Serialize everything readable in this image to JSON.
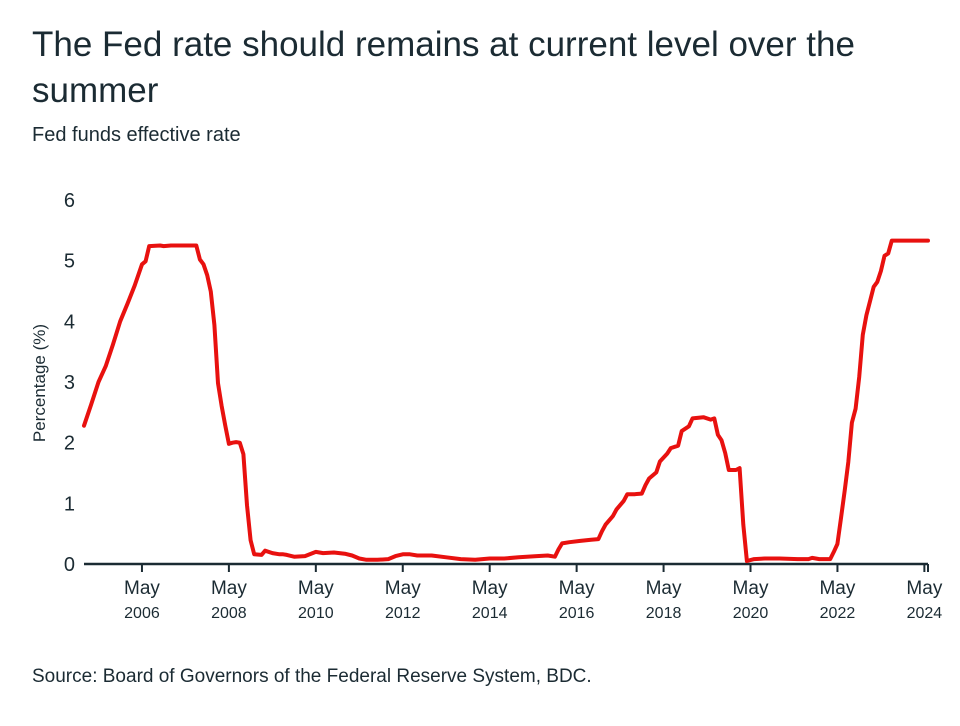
{
  "header": {
    "title": "The Fed rate should remains at current level over the summer",
    "subtitle": "Fed funds effective rate"
  },
  "footer": {
    "source": "Source: Board of Governors of the Federal Reserve System, BDC."
  },
  "colors": {
    "line": "#e8110f",
    "axis": "#1b2b33",
    "text": "#1b2b33"
  },
  "chart_data": {
    "type": "line",
    "title": "The Fed rate should remains at current level over the summer",
    "subtitle": "Fed funds effective rate",
    "ylabel": "Percentage (%)",
    "xlabel": "",
    "ylim": [
      0,
      6
    ],
    "xlim": [
      "2005-01",
      "2024-06"
    ],
    "yticks": [
      0,
      1,
      2,
      3,
      4,
      5,
      6
    ],
    "xticks": [
      {
        "x": "2006-05",
        "line1": "May",
        "line2": "2006"
      },
      {
        "x": "2008-05",
        "line1": "May",
        "line2": "2008"
      },
      {
        "x": "2010-05",
        "line1": "May",
        "line2": "2010"
      },
      {
        "x": "2012-05",
        "line1": "May",
        "line2": "2012"
      },
      {
        "x": "2014-05",
        "line1": "May",
        "line2": "2014"
      },
      {
        "x": "2016-05",
        "line1": "May",
        "line2": "2016"
      },
      {
        "x": "2018-05",
        "line1": "May",
        "line2": "2018"
      },
      {
        "x": "2020-05",
        "line1": "May",
        "line2": "2020"
      },
      {
        "x": "2022-05",
        "line1": "May",
        "line2": "2022"
      },
      {
        "x": "2024-05",
        "line1": "May",
        "line2": "2024"
      }
    ],
    "grid": false,
    "legend": "none",
    "series": [
      {
        "points": [
          [
            "2005-01",
            2.28
          ],
          [
            "2005-03",
            2.63
          ],
          [
            "2005-05",
            3.0
          ],
          [
            "2005-07",
            3.26
          ],
          [
            "2005-09",
            3.62
          ],
          [
            "2005-11",
            4.0
          ],
          [
            "2006-01",
            4.29
          ],
          [
            "2006-03",
            4.59
          ],
          [
            "2006-05",
            4.94
          ],
          [
            "2006-06",
            4.99
          ],
          [
            "2006-07",
            5.24
          ],
          [
            "2006-10",
            5.25
          ],
          [
            "2006-11",
            5.24
          ],
          [
            "2007-01",
            5.25
          ],
          [
            "2007-08",
            5.25
          ],
          [
            "2007-09",
            5.02
          ],
          [
            "2007-10",
            4.94
          ],
          [
            "2007-11",
            4.76
          ],
          [
            "2007-12",
            4.49
          ],
          [
            "2008-01",
            3.94
          ],
          [
            "2008-02",
            2.98
          ],
          [
            "2008-03",
            2.61
          ],
          [
            "2008-04",
            2.28
          ],
          [
            "2008-05",
            1.98
          ],
          [
            "2008-06",
            2.0
          ],
          [
            "2008-07",
            2.01
          ],
          [
            "2008-08",
            2.0
          ],
          [
            "2008-09",
            1.81
          ],
          [
            "2008-10",
            0.97
          ],
          [
            "2008-11",
            0.39
          ],
          [
            "2008-12",
            0.16
          ],
          [
            "2009-02",
            0.15
          ],
          [
            "2009-03",
            0.22
          ],
          [
            "2009-05",
            0.18
          ],
          [
            "2009-07",
            0.16
          ],
          [
            "2009-08",
            0.16
          ],
          [
            "2009-09",
            0.15
          ],
          [
            "2009-11",
            0.12
          ],
          [
            "2010-02",
            0.13
          ],
          [
            "2010-05",
            0.2
          ],
          [
            "2010-07",
            0.18
          ],
          [
            "2010-10",
            0.19
          ],
          [
            "2011-01",
            0.17
          ],
          [
            "2011-03",
            0.14
          ],
          [
            "2011-05",
            0.09
          ],
          [
            "2011-07",
            0.07
          ],
          [
            "2011-10",
            0.07
          ],
          [
            "2012-01",
            0.08
          ],
          [
            "2012-03",
            0.13
          ],
          [
            "2012-05",
            0.16
          ],
          [
            "2012-07",
            0.16
          ],
          [
            "2012-09",
            0.14
          ],
          [
            "2013-01",
            0.14
          ],
          [
            "2013-05",
            0.11
          ],
          [
            "2013-09",
            0.08
          ],
          [
            "2014-01",
            0.07
          ],
          [
            "2014-05",
            0.09
          ],
          [
            "2014-09",
            0.09
          ],
          [
            "2015-01",
            0.11
          ],
          [
            "2015-06",
            0.13
          ],
          [
            "2015-09",
            0.14
          ],
          [
            "2015-11",
            0.12
          ],
          [
            "2015-12",
            0.24
          ],
          [
            "2016-01",
            0.34
          ],
          [
            "2016-03",
            0.36
          ],
          [
            "2016-06",
            0.38
          ],
          [
            "2016-09",
            0.4
          ],
          [
            "2016-11",
            0.41
          ],
          [
            "2016-12",
            0.54
          ],
          [
            "2017-01",
            0.65
          ],
          [
            "2017-03",
            0.79
          ],
          [
            "2017-04",
            0.9
          ],
          [
            "2017-06",
            1.04
          ],
          [
            "2017-07",
            1.15
          ],
          [
            "2017-09",
            1.15
          ],
          [
            "2017-11",
            1.16
          ],
          [
            "2017-12",
            1.3
          ],
          [
            "2018-01",
            1.41
          ],
          [
            "2018-03",
            1.51
          ],
          [
            "2018-04",
            1.69
          ],
          [
            "2018-06",
            1.82
          ],
          [
            "2018-07",
            1.91
          ],
          [
            "2018-09",
            1.95
          ],
          [
            "2018-10",
            2.19
          ],
          [
            "2018-12",
            2.27
          ],
          [
            "2019-01",
            2.4
          ],
          [
            "2019-04",
            2.42
          ],
          [
            "2019-06",
            2.38
          ],
          [
            "2019-07",
            2.4
          ],
          [
            "2019-08",
            2.13
          ],
          [
            "2019-09",
            2.04
          ],
          [
            "2019-10",
            1.83
          ],
          [
            "2019-11",
            1.55
          ],
          [
            "2020-01",
            1.55
          ],
          [
            "2020-02",
            1.58
          ],
          [
            "2020-03",
            0.65
          ],
          [
            "2020-04",
            0.05
          ],
          [
            "2020-06",
            0.08
          ],
          [
            "2020-09",
            0.09
          ],
          [
            "2021-01",
            0.09
          ],
          [
            "2021-06",
            0.08
          ],
          [
            "2021-09",
            0.08
          ],
          [
            "2021-10",
            0.1
          ],
          [
            "2021-12",
            0.08
          ],
          [
            "2022-03",
            0.08
          ],
          [
            "2022-04",
            0.2
          ],
          [
            "2022-05",
            0.33
          ],
          [
            "2022-06",
            0.77
          ],
          [
            "2022-07",
            1.21
          ],
          [
            "2022-08",
            1.68
          ],
          [
            "2022-09",
            2.33
          ],
          [
            "2022-10",
            2.56
          ],
          [
            "2022-11",
            3.08
          ],
          [
            "2022-12",
            3.78
          ],
          [
            "2023-01",
            4.1
          ],
          [
            "2023-02",
            4.33
          ],
          [
            "2023-03",
            4.57
          ],
          [
            "2023-04",
            4.65
          ],
          [
            "2023-05",
            4.83
          ],
          [
            "2023-06",
            5.08
          ],
          [
            "2023-07",
            5.12
          ],
          [
            "2023-08",
            5.33
          ],
          [
            "2024-06",
            5.33
          ]
        ]
      }
    ]
  }
}
